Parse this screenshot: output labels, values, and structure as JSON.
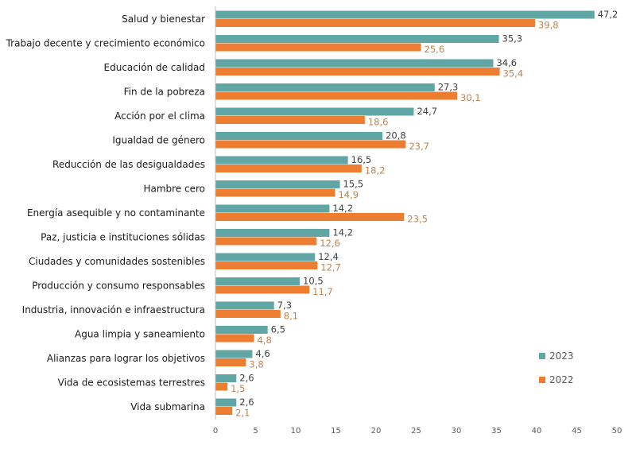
{
  "chart_data": {
    "type": "bar",
    "orientation": "horizontal",
    "categories": [
      "Salud y bienestar",
      "Trabajo decente y crecimiento económico",
      "Educación de calidad",
      "Fin de la pobreza",
      "Acción por el clima",
      "Igualdad de género",
      "Reducción de las desigualdades",
      "Hambre cero",
      "Energía asequible y no contaminante",
      "Paz, justicia e instituciones sólidas",
      "Ciudades y comunidades sostenibles",
      "Producción y consumo responsables",
      "Industria, innovación e infraestructura",
      "Agua limpia y saneamiento",
      "Alianzas para lograr los objetivos",
      "Vida de ecosistemas terrestres",
      "Vida submarina"
    ],
    "series": [
      {
        "name": "2023",
        "color": "#5fa6a4",
        "label_color": "#404040",
        "values": [
          47.2,
          35.3,
          34.6,
          27.3,
          24.7,
          20.8,
          16.5,
          15.5,
          14.2,
          14.2,
          12.4,
          10.5,
          7.3,
          6.5,
          4.6,
          2.6,
          2.6
        ],
        "labels": [
          "47,2",
          "35,3",
          "34,6",
          "27,3",
          "24,7",
          "20,8",
          "16,5",
          "15,5",
          "14,2",
          "14,2",
          "12,4",
          "10,5",
          "7,3",
          "6,5",
          "4,6",
          "2,6",
          "2,6"
        ]
      },
      {
        "name": "2022",
        "color": "#ed7d31",
        "label_color": "#c0844f",
        "values": [
          39.8,
          25.6,
          35.4,
          30.1,
          18.6,
          23.7,
          18.2,
          14.9,
          23.5,
          12.6,
          12.7,
          11.7,
          8.1,
          4.8,
          3.8,
          1.5,
          2.1
        ],
        "labels": [
          "39,8",
          "25,6",
          "35,4",
          "30,1",
          "18,6",
          "23,7",
          "18,2",
          "14,9",
          "23,5",
          "12,6",
          "12,7",
          "11,7",
          "8,1",
          "4,8",
          "3,8",
          "1,5",
          "2,1"
        ]
      }
    ],
    "xlim": [
      0,
      50
    ],
    "xticks": [
      "0",
      "5",
      "10",
      "15",
      "20",
      "25",
      "30",
      "35",
      "40",
      "45",
      "50"
    ],
    "grid": false,
    "legend": {
      "placement": "bottom-right",
      "entries": [
        "2023",
        "2022"
      ]
    }
  }
}
